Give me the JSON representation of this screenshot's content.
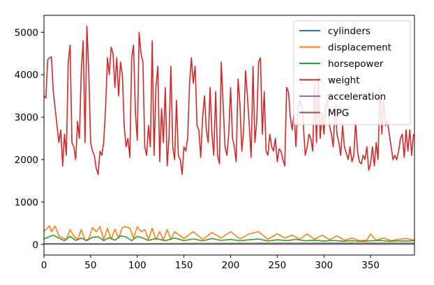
{
  "chart_data": {
    "type": "line",
    "title": "",
    "xlabel": "",
    "ylabel": "",
    "xlim": [
      0,
      397
    ],
    "ylim": [
      -250,
      5400
    ],
    "x_ticks": [
      0,
      50,
      100,
      150,
      200,
      250,
      300,
      350
    ],
    "y_ticks": [
      0,
      1000,
      2000,
      3000,
      4000,
      5000
    ],
    "x_tick_labels": [
      "0",
      "50",
      "100",
      "150",
      "200",
      "250",
      "300",
      "350"
    ],
    "y_tick_labels": [
      "0",
      "1000",
      "2000",
      "3000",
      "4000",
      "5000"
    ],
    "grid": false,
    "legend_position": "upper right",
    "series": [
      {
        "name": "cylinders",
        "color": "#1f77b4",
        "x": [
          0,
          70,
          130,
          200,
          260,
          320,
          397
        ],
        "values": [
          8,
          4,
          8,
          4,
          6,
          4,
          4
        ]
      },
      {
        "name": "displacement",
        "color": "#ff7f0e",
        "x": [
          0,
          2,
          6,
          8,
          12,
          16,
          20,
          24,
          28,
          32,
          36,
          40,
          44,
          48,
          52,
          56,
          60,
          64,
          68,
          72,
          76,
          80,
          84,
          88,
          92,
          96,
          100,
          104,
          108,
          112,
          116,
          120,
          124,
          128,
          132,
          136,
          140,
          150,
          160,
          170,
          180,
          190,
          200,
          210,
          220,
          230,
          240,
          250,
          258,
          266,
          274,
          282,
          290,
          298,
          306,
          314,
          322,
          330,
          338,
          346,
          350,
          356,
          364,
          372,
          380,
          388,
          397
        ],
        "values": [
          320,
          350,
          440,
          300,
          430,
          200,
          150,
          120,
          350,
          200,
          110,
          350,
          100,
          130,
          400,
          300,
          420,
          110,
          380,
          120,
          360,
          150,
          400,
          420,
          380,
          150,
          420,
          300,
          350,
          120,
          380,
          110,
          300,
          100,
          350,
          120,
          300,
          140,
          300,
          120,
          280,
          150,
          300,
          130,
          250,
          300,
          120,
          250,
          150,
          220,
          120,
          250,
          120,
          220,
          110,
          200,
          100,
          150,
          90,
          100,
          250,
          100,
          150,
          90,
          120,
          140,
          100
        ]
      },
      {
        "name": "horsepower",
        "color": "#2ca02c",
        "x": [
          0,
          4,
          10,
          16,
          22,
          28,
          34,
          40,
          46,
          52,
          58,
          64,
          70,
          76,
          82,
          88,
          94,
          100,
          106,
          112,
          120,
          130,
          140,
          150,
          160,
          170,
          180,
          190,
          200,
          210,
          220,
          230,
          240,
          250,
          260,
          270,
          280,
          290,
          300,
          310,
          320,
          330,
          340,
          350,
          360,
          370,
          380,
          390,
          397
        ],
        "values": [
          130,
          165,
          220,
          150,
          90,
          190,
          95,
          150,
          90,
          170,
          180,
          90,
          160,
          100,
          200,
          175,
          90,
          190,
          150,
          95,
          140,
          90,
          150,
          90,
          130,
          85,
          140,
          95,
          120,
          85,
          110,
          130,
          80,
          110,
          90,
          120,
          85,
          100,
          80,
          95,
          75,
          90,
          70,
          85,
          95,
          75,
          85,
          80,
          90
        ]
      },
      {
        "name": "weight",
        "color": "#d62728",
        "x": [
          0,
          2,
          4,
          6,
          8,
          10,
          12,
          14,
          16,
          18,
          20,
          22,
          24,
          26,
          28,
          30,
          32,
          34,
          36,
          38,
          40,
          42,
          44,
          46,
          48,
          50,
          52,
          54,
          56,
          58,
          60,
          62,
          64,
          66,
          68,
          70,
          72,
          74,
          76,
          78,
          80,
          82,
          84,
          86,
          88,
          90,
          92,
          94,
          96,
          98,
          100,
          102,
          104,
          106,
          108,
          110,
          112,
          114,
          116,
          118,
          120,
          122,
          124,
          126,
          128,
          130,
          132,
          134,
          136,
          138,
          140,
          142,
          144,
          146,
          148,
          150,
          152,
          154,
          156,
          158,
          160,
          162,
          164,
          166,
          168,
          170,
          172,
          174,
          176,
          178,
          180,
          182,
          184,
          186,
          188,
          190,
          192,
          194,
          196,
          198,
          200,
          202,
          204,
          206,
          208,
          210,
          212,
          214,
          216,
          218,
          220,
          222,
          224,
          226,
          228,
          230,
          232,
          234,
          236,
          238,
          240,
          242,
          244,
          246,
          248,
          250,
          252,
          254,
          256,
          258,
          260,
          262,
          264,
          266,
          268,
          270,
          272,
          274,
          276,
          278,
          280,
          282,
          284,
          286,
          288,
          290,
          292,
          294,
          296,
          298,
          300,
          302,
          304,
          306,
          308,
          310,
          312,
          314,
          316,
          318,
          320,
          322,
          324,
          326,
          328,
          330,
          332,
          334,
          336,
          338,
          340,
          342,
          344,
          346,
          348,
          350,
          352,
          354,
          356,
          358,
          360,
          362,
          364,
          366,
          368,
          370,
          372,
          374,
          376,
          378,
          380,
          382,
          384,
          386,
          388,
          390,
          392,
          394,
          396
        ],
        "values": [
          3500,
          3450,
          4350,
          4400,
          4420,
          3600,
          3200,
          2800,
          2400,
          2700,
          1850,
          2600,
          2100,
          4300,
          4700,
          2400,
          2300,
          2000,
          2900,
          2500,
          4100,
          4800,
          2400,
          5150,
          4100,
          2400,
          2200,
          2100,
          1800,
          1650,
          2200,
          2100,
          2400,
          3200,
          4400,
          4000,
          4650,
          4500,
          3700,
          4400,
          3500,
          4300,
          4000,
          2800,
          2300,
          2500,
          2050,
          4400,
          4700,
          3100,
          2450,
          5000,
          4500,
          4300,
          2300,
          2100,
          2800,
          2300,
          4800,
          2100,
          3700,
          4200,
          1950,
          3200,
          2400,
          3700,
          1850,
          2500,
          4200,
          2300,
          2000,
          3400,
          2100,
          2000,
          1650,
          2300,
          2200,
          2500,
          3800,
          4400,
          3800,
          4200,
          2800,
          2700,
          2050,
          3000,
          3500,
          2700,
          2400,
          3700,
          2600,
          2100,
          3600,
          2100,
          1900,
          4300,
          3300,
          2300,
          2100,
          2600,
          3700,
          2500,
          2300,
          1950,
          3900,
          3300,
          2200,
          2700,
          4100,
          3500,
          2800,
          2050,
          4200,
          2400,
          2900,
          4300,
          4400,
          2600,
          3600,
          2200,
          2100,
          2600,
          2300,
          2200,
          2500,
          1950,
          2250,
          2200,
          2000,
          1850,
          3700,
          3600,
          3000,
          2700,
          3100,
          2300,
          3200,
          3400,
          3300,
          2800,
          2100,
          2300,
          2600,
          2500,
          2200,
          3800,
          2400,
          4000,
          2500,
          3100,
          2600,
          3300,
          3400,
          2800,
          2600,
          2300,
          3300,
          2600,
          2400,
          2100,
          2800,
          2300,
          2150,
          2000,
          2300,
          1950,
          2100,
          2900,
          2200,
          1950,
          1900,
          2100,
          2000,
          2300,
          1750,
          1900,
          2300,
          1850,
          2400,
          2000,
          3700,
          2600,
          3400,
          2800,
          2900,
          2600,
          2300,
          2000,
          2100,
          2000,
          2200,
          2500,
          2600,
          2050,
          2700,
          2200,
          2700,
          2100,
          2600
        ]
      },
      {
        "name": "acceleration",
        "color": "#9467bd",
        "x": [
          0,
          397
        ],
        "values": [
          15,
          16
        ]
      },
      {
        "name": "MPG",
        "color": "#8c564b",
        "x": [
          0,
          100,
          200,
          300,
          397
        ],
        "values": [
          18,
          16,
          24,
          30,
          28
        ]
      }
    ]
  }
}
